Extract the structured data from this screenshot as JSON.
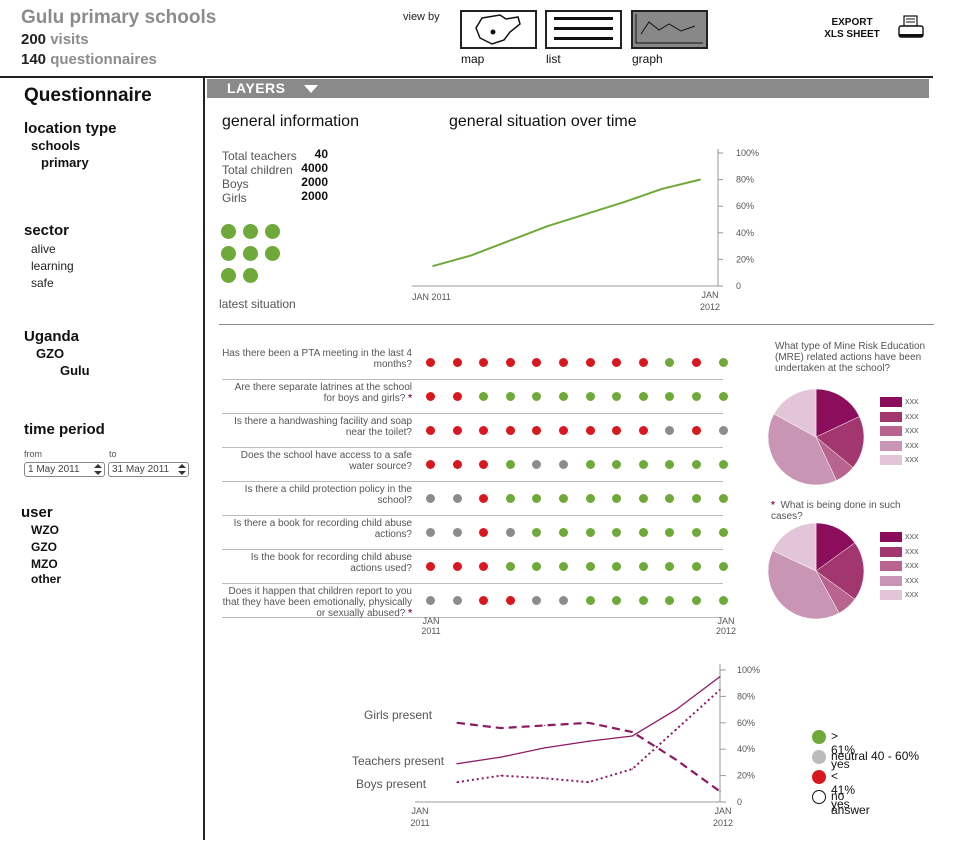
{
  "header": {
    "title": "Gulu primary schools",
    "visits_count": "200",
    "visits_label": "visits",
    "questionnaires_count": "140",
    "questionnaires_label": "questionnaires",
    "view_by": "view by",
    "views": [
      {
        "label": "map",
        "icon": "map-icon"
      },
      {
        "label": "list",
        "icon": "list-icon"
      },
      {
        "label": "graph",
        "icon": "line-graph-icon",
        "active": true
      }
    ],
    "export_line1": "EXPORT",
    "export_line2": "XLS SHEET"
  },
  "layers": {
    "label": "LAYERS"
  },
  "sidebar": {
    "title": "Questionnaire",
    "location_type": {
      "heading": "location type",
      "level1": "schools",
      "level2": "primary"
    },
    "sector": {
      "heading": "sector",
      "items": [
        "alive",
        "learning",
        "safe"
      ]
    },
    "region": {
      "heading": "Uganda",
      "level1": "GZO",
      "level2": "Gulu"
    },
    "time_period": {
      "heading": "time period",
      "from_label": "from",
      "to_label": "to",
      "from_value": "1 May 2011",
      "to_value": "31 May 2011"
    },
    "user": {
      "heading": "user",
      "items": [
        "WZO",
        "GZO",
        "MZO",
        "other"
      ]
    }
  },
  "general_info": {
    "title": "general information",
    "rows": [
      {
        "label": "Total teachers",
        "value": "40"
      },
      {
        "label": "Total children",
        "value": "4000"
      },
      {
        "label": "Boys",
        "value": "2000"
      },
      {
        "label": "Girls",
        "value": "2000"
      }
    ],
    "latest_label": "latest situation"
  },
  "colors": {
    "green": "#6ea93a",
    "red": "#d7191f",
    "grey": "#8c8c8c",
    "purple": "#8b1a63"
  },
  "chart_data": [
    {
      "type": "line",
      "title": "general situation over time",
      "x_start_label": "JAN 2011",
      "x_end_label": [
        "JAN",
        "2012"
      ],
      "y_ticks": [
        "0",
        "20%",
        "40%",
        "60%",
        "80%",
        "100%"
      ],
      "ylim": [
        0,
        100
      ],
      "series": [
        {
          "values": [
            15,
            23,
            34,
            45,
            54,
            63,
            73,
            80
          ]
        }
      ]
    },
    {
      "type": "table",
      "x_start_label": [
        "JAN",
        "2011"
      ],
      "x_end_label": [
        "JAN",
        "2012"
      ],
      "rows": [
        {
          "question": "Has there been a PTA meeting in the last 4 months?",
          "star": false,
          "statuses": [
            "r",
            "r",
            "r",
            "r",
            "r",
            "r",
            "r",
            "r",
            "r",
            "g",
            "r",
            "g"
          ]
        },
        {
          "question": "Are there separate latrines at the school for boys and girls?",
          "star": true,
          "statuses": [
            "r",
            "r",
            "g",
            "g",
            "g",
            "g",
            "g",
            "g",
            "g",
            "g",
            "g",
            "g"
          ]
        },
        {
          "question": "Is there a handwashing facility and soap near the toilet?",
          "star": false,
          "statuses": [
            "r",
            "r",
            "r",
            "r",
            "r",
            "r",
            "r",
            "r",
            "r",
            "n",
            "r",
            "n"
          ]
        },
        {
          "question": "Does the school have access to a safe water source?",
          "star": false,
          "statuses": [
            "r",
            "r",
            "r",
            "g",
            "n",
            "n",
            "g",
            "g",
            "g",
            "g",
            "g",
            "g"
          ]
        },
        {
          "question": "Is there a child protection policy in the school?",
          "star": false,
          "statuses": [
            "n",
            "n",
            "r",
            "g",
            "g",
            "g",
            "g",
            "g",
            "g",
            "g",
            "g",
            "g"
          ]
        },
        {
          "question": "Is there a book for recording child abuse actions?",
          "star": false,
          "statuses": [
            "n",
            "n",
            "r",
            "n",
            "g",
            "g",
            "g",
            "g",
            "g",
            "g",
            "g",
            "g"
          ]
        },
        {
          "question": "Is the book for recording child abuse actions used?",
          "star": false,
          "statuses": [
            "r",
            "r",
            "r",
            "g",
            "g",
            "g",
            "g",
            "g",
            "g",
            "g",
            "g",
            "g"
          ]
        },
        {
          "question": "Does it happen that children report to you that they have been emotionally, physically or sexually abused?",
          "star": true,
          "statuses": [
            "n",
            "n",
            "r",
            "r",
            "n",
            "n",
            "g",
            "g",
            "g",
            "g",
            "g",
            "g"
          ]
        }
      ]
    },
    {
      "type": "pie",
      "title": "What type of Mine Risk Education (MRE) related actions have been undertaken at the school?",
      "star": false,
      "slices": [
        {
          "label": "xxx",
          "value": 18,
          "color": "#8b0d5c"
        },
        {
          "label": "xxx",
          "value": 18,
          "color": "#a2376f"
        },
        {
          "label": "xxx",
          "value": 7,
          "color": "#b8648f"
        },
        {
          "label": "xxx",
          "value": 40,
          "color": "#c895b4"
        },
        {
          "label": "xxx",
          "value": 17,
          "color": "#e2c6d7"
        }
      ]
    },
    {
      "type": "pie",
      "title": "What is being done in such cases?",
      "star": true,
      "slices": [
        {
          "label": "xxx",
          "value": 15,
          "color": "#8b0d5c"
        },
        {
          "label": "xxx",
          "value": 20,
          "color": "#a2376f"
        },
        {
          "label": "xxx",
          "value": 7,
          "color": "#b8648f"
        },
        {
          "label": "xxx",
          "value": 40,
          "color": "#c895b4"
        },
        {
          "label": "xxx",
          "value": 18,
          "color": "#e2c6d7"
        }
      ]
    },
    {
      "type": "line",
      "x_start_label": [
        "JAN",
        "2011"
      ],
      "x_end_label": [
        "JAN",
        "2012"
      ],
      "y_ticks": [
        "0",
        "20%",
        "40%",
        "60%",
        "80%",
        "100%"
      ],
      "ylim": [
        0,
        100
      ],
      "series": [
        {
          "name": "Girls present",
          "style": "dashed",
          "values": [
            60,
            56,
            58,
            60,
            53,
            32,
            8
          ]
        },
        {
          "name": "Teachers present",
          "style": "solid",
          "values": [
            29,
            34,
            41,
            46,
            50,
            70,
            95
          ]
        },
        {
          "name": "Boys present",
          "style": "dotted",
          "values": [
            15,
            20,
            18,
            15,
            25,
            55,
            85
          ]
        }
      ]
    }
  ],
  "legend": [
    {
      "label": "> 61% yes",
      "color": "#6ea93a"
    },
    {
      "label": "neutral 40 - 60%",
      "color": "#bbbbbb"
    },
    {
      "label": "< 41% yes",
      "color": "#d7191f"
    },
    {
      "label": "no answer",
      "color": "#ffffff"
    }
  ]
}
